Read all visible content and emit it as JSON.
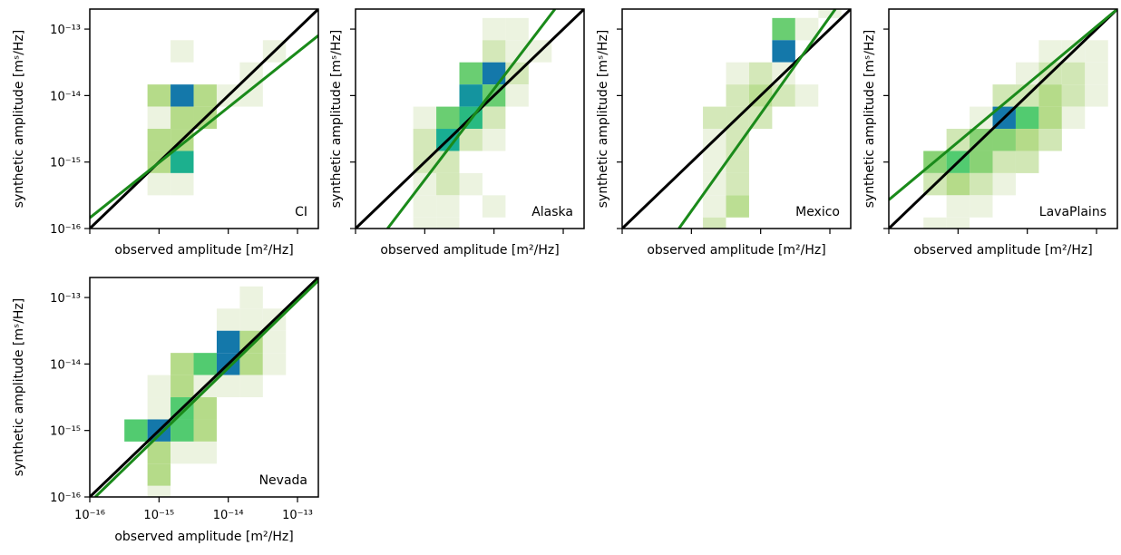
{
  "figure": {
    "xlabel": "observed amplitude [m²/Hz]",
    "ylabel": "synthetic amplitude [mˢ/Hz]"
  },
  "chart_data": [
    {
      "type": "heatmap",
      "panel_label": "CI",
      "xlabel": "observed amplitude [m²/Hz]",
      "ylabel": "synthetic amplitude [mˢ/Hz]",
      "xscale": "log",
      "yscale": "log",
      "xlim": [
        1e-16,
        2e-13
      ],
      "ylim": [
        1e-16,
        2e-13
      ],
      "xticks": [
        1e-16,
        1e-15,
        1e-14,
        1e-13
      ],
      "yticks": [
        1e-16,
        1e-15,
        1e-14,
        1e-13
      ],
      "ytick_labels": [
        "10⁻¹⁶",
        "10⁻¹⁵",
        "10⁻¹⁴",
        "10⁻¹³"
      ],
      "xtick_labels": [],
      "bin_log10_width": 0.3333,
      "bins": [
        {
          "x": -13.6667,
          "y": -13.6667,
          "count": 1
        },
        {
          "x": -14.6667,
          "y": -13.3333,
          "count": 1
        },
        {
          "x": -13.3333,
          "y": -13.3333,
          "count": 1
        },
        {
          "x": -15.0,
          "y": -14.0,
          "count": 2
        },
        {
          "x": -14.6667,
          "y": -14.0,
          "count": 5
        },
        {
          "x": -14.3333,
          "y": -14.0,
          "count": 2
        },
        {
          "x": -14.0,
          "y": -14.0,
          "count": 1
        },
        {
          "x": -13.6667,
          "y": -14.0,
          "count": 1
        },
        {
          "x": -15.0,
          "y": -14.3333,
          "count": 1
        },
        {
          "x": -14.6667,
          "y": -14.3333,
          "count": 2
        },
        {
          "x": -14.3333,
          "y": -14.3333,
          "count": 2
        },
        {
          "x": -15.0,
          "y": -14.6667,
          "count": 2
        },
        {
          "x": -14.6667,
          "y": -14.6667,
          "count": 2
        },
        {
          "x": -15.0,
          "y": -15.0,
          "count": 2
        },
        {
          "x": -14.6667,
          "y": -15.0,
          "count": 4
        },
        {
          "x": -15.0,
          "y": -15.3333,
          "count": 1
        },
        {
          "x": -14.6667,
          "y": -15.3333,
          "count": 1
        }
      ],
      "lines": [
        {
          "name": "",
          "color": "#000000",
          "points": [
            [
              1e-16,
              1e-16
            ],
            [
              2e-13,
              2e-13
            ]
          ]
        },
        {
          "name": "",
          "color": "#1a8a1a",
          "points": [
            [
              1e-16,
              1.45e-16
            ],
            [
              2e-13,
              8e-14
            ]
          ]
        }
      ]
    },
    {
      "type": "heatmap",
      "panel_label": "Alaska",
      "xlabel": "observed amplitude [m²/Hz]",
      "ylabel": "synthetic amplitude [mˢ/Hz]",
      "xscale": "log",
      "yscale": "log",
      "xlim": [
        1e-16,
        2e-13
      ],
      "ylim": [
        1e-16,
        2e-13
      ],
      "xticks": [
        1e-16,
        1e-15,
        1e-14,
        1e-13
      ],
      "yticks": [
        1e-16,
        1e-15,
        1e-14,
        1e-13
      ],
      "ytick_labels": [],
      "xtick_labels": [],
      "bin_log10_width": 0.3333,
      "bins": [
        {
          "x": -13.3333,
          "y": -13.3333,
          "count": 1
        },
        {
          "x": -14.0,
          "y": -13.0,
          "count": 1
        },
        {
          "x": -13.6667,
          "y": -13.0,
          "count": 1
        },
        {
          "x": -14.0,
          "y": -13.3333,
          "count": 2
        },
        {
          "x": -13.6667,
          "y": -13.3333,
          "count": 1
        },
        {
          "x": -14.3333,
          "y": -13.6667,
          "count": 5
        },
        {
          "x": -14.0,
          "y": -13.6667,
          "count": 10
        },
        {
          "x": -13.6667,
          "y": -13.6667,
          "count": 2
        },
        {
          "x": -14.3333,
          "y": -14.0,
          "count": 9
        },
        {
          "x": -14.0,
          "y": -14.0,
          "count": 5
        },
        {
          "x": -13.6667,
          "y": -14.0,
          "count": 1
        },
        {
          "x": -15.0,
          "y": -14.3333,
          "count": 1
        },
        {
          "x": -14.6667,
          "y": -14.3333,
          "count": 5
        },
        {
          "x": -14.3333,
          "y": -14.3333,
          "count": 7
        },
        {
          "x": -14.0,
          "y": -14.3333,
          "count": 2
        },
        {
          "x": -15.0,
          "y": -14.6667,
          "count": 2
        },
        {
          "x": -14.6667,
          "y": -14.6667,
          "count": 8
        },
        {
          "x": -14.3333,
          "y": -14.6667,
          "count": 2
        },
        {
          "x": -14.0,
          "y": -14.6667,
          "count": 1
        },
        {
          "x": -15.0,
          "y": -15.0,
          "count": 2
        },
        {
          "x": -14.6667,
          "y": -15.0,
          "count": 2
        },
        {
          "x": -15.0,
          "y": -15.3333,
          "count": 1
        },
        {
          "x": -14.6667,
          "y": -15.3333,
          "count": 2
        },
        {
          "x": -14.3333,
          "y": -15.3333,
          "count": 1
        },
        {
          "x": -15.0,
          "y": -15.6667,
          "count": 1
        },
        {
          "x": -14.6667,
          "y": -15.6667,
          "count": 1
        },
        {
          "x": -14.0,
          "y": -15.6667,
          "count": 1
        },
        {
          "x": -15.0,
          "y": -16.0,
          "count": 1
        },
        {
          "x": -14.6667,
          "y": -16.0,
          "count": 1
        }
      ],
      "lines": [
        {
          "name": "",
          "color": "#000000",
          "points": [
            [
              1e-16,
              1e-16
            ],
            [
              2e-13,
              2e-13
            ]
          ]
        },
        {
          "name": "",
          "color": "#1a8a1a",
          "points": [
            [
              2.9e-16,
              1e-16
            ],
            [
              7.6e-14,
              2e-13
            ]
          ]
        }
      ]
    },
    {
      "type": "heatmap",
      "panel_label": "Mexico",
      "xlabel": "observed amplitude [m²/Hz]",
      "ylabel": "synthetic amplitude [mˢ/Hz]",
      "xscale": "log",
      "yscale": "log",
      "xlim": [
        1e-16,
        2e-13
      ],
      "ylim": [
        1e-16,
        2e-13
      ],
      "xticks": [
        1e-16,
        1e-15,
        1e-14,
        1e-13
      ],
      "yticks": [
        1e-16,
        1e-15,
        1e-14,
        1e-13
      ],
      "ytick_labels": [],
      "xtick_labels": [],
      "bin_log10_width": 0.3333,
      "bins": [
        {
          "x": -13.3333,
          "y": -13.0,
          "count": 1
        },
        {
          "x": -13.0,
          "y": -12.6667,
          "count": 1
        },
        {
          "x": -13.6667,
          "y": -13.0,
          "count": 5
        },
        {
          "x": -13.3333,
          "y": -13.0,
          "count": 1
        },
        {
          "x": -13.6667,
          "y": -13.3333,
          "count": 10
        },
        {
          "x": -14.3333,
          "y": -13.6667,
          "count": 1
        },
        {
          "x": -14.0,
          "y": -13.6667,
          "count": 2
        },
        {
          "x": -13.6667,
          "y": -13.6667,
          "count": 1
        },
        {
          "x": -14.3333,
          "y": -14.0,
          "count": 2
        },
        {
          "x": -14.0,
          "y": -14.0,
          "count": 3
        },
        {
          "x": -13.6667,
          "y": -14.0,
          "count": 2
        },
        {
          "x": -13.3333,
          "y": -14.0,
          "count": 1
        },
        {
          "x": -14.6667,
          "y": -14.3333,
          "count": 2
        },
        {
          "x": -14.3333,
          "y": -14.3333,
          "count": 2
        },
        {
          "x": -14.0,
          "y": -14.3333,
          "count": 2
        },
        {
          "x": -14.6667,
          "y": -14.6667,
          "count": 1
        },
        {
          "x": -14.3333,
          "y": -14.6667,
          "count": 2
        },
        {
          "x": -14.6667,
          "y": -15.0,
          "count": 1
        },
        {
          "x": -14.3333,
          "y": -15.0,
          "count": 2
        },
        {
          "x": -14.6667,
          "y": -15.3333,
          "count": 1
        },
        {
          "x": -14.3333,
          "y": -15.3333,
          "count": 2
        },
        {
          "x": -14.6667,
          "y": -15.6667,
          "count": 1
        },
        {
          "x": -14.3333,
          "y": -15.6667,
          "count": 3
        },
        {
          "x": -14.6667,
          "y": -16.0,
          "count": 2
        }
      ],
      "lines": [
        {
          "name": "",
          "color": "#000000",
          "points": [
            [
              1e-16,
              1e-16
            ],
            [
              2e-13,
              2e-13
            ]
          ]
        },
        {
          "name": "",
          "color": "#1a8a1a",
          "points": [
            [
              6.6e-16,
              1e-16
            ],
            [
              1.2e-13,
              2e-13
            ]
          ]
        }
      ]
    },
    {
      "type": "heatmap",
      "panel_label": "LavaPlains",
      "xlabel": "observed amplitude [m²/Hz]",
      "ylabel": "synthetic amplitude [mˢ/Hz]",
      "xscale": "log",
      "yscale": "log",
      "xlim": [
        1e-16,
        2e-13
      ],
      "ylim": [
        1e-16,
        2e-13
      ],
      "xticks": [
        1e-16,
        1e-15,
        1e-14,
        1e-13
      ],
      "yticks": [
        1e-16,
        1e-15,
        1e-14,
        1e-13
      ],
      "ytick_labels": [],
      "xtick_labels": [],
      "bin_log10_width": 0.3333,
      "bins": [
        {
          "x": -13.3333,
          "y": -13.3333,
          "count": 1
        },
        {
          "x": -13.6667,
          "y": -13.3333,
          "count": 1
        },
        {
          "x": -13.0,
          "y": -13.3333,
          "count": 1
        },
        {
          "x": -14.0,
          "y": -13.6667,
          "count": 1
        },
        {
          "x": -13.6667,
          "y": -13.6667,
          "count": 2
        },
        {
          "x": -13.3333,
          "y": -13.6667,
          "count": 2
        },
        {
          "x": -13.0,
          "y": -13.6667,
          "count": 1
        },
        {
          "x": -14.3333,
          "y": -14.0,
          "count": 2
        },
        {
          "x": -14.0,
          "y": -14.0,
          "count": 2
        },
        {
          "x": -13.6667,
          "y": -14.0,
          "count": 3
        },
        {
          "x": -13.3333,
          "y": -14.0,
          "count": 2
        },
        {
          "x": -13.0,
          "y": -14.0,
          "count": 1
        },
        {
          "x": -14.6667,
          "y": -14.3333,
          "count": 1
        },
        {
          "x": -14.3333,
          "y": -14.3333,
          "count": 9
        },
        {
          "x": -14.0,
          "y": -14.3333,
          "count": 5
        },
        {
          "x": -13.6667,
          "y": -14.3333,
          "count": 3
        },
        {
          "x": -13.3333,
          "y": -14.3333,
          "count": 1
        },
        {
          "x": -15.0,
          "y": -14.6667,
          "count": 2
        },
        {
          "x": -14.6667,
          "y": -14.6667,
          "count": 4
        },
        {
          "x": -14.3333,
          "y": -14.6667,
          "count": 4
        },
        {
          "x": -14.0,
          "y": -14.6667,
          "count": 3
        },
        {
          "x": -13.6667,
          "y": -14.6667,
          "count": 2
        },
        {
          "x": -15.3333,
          "y": -15.0,
          "count": 4
        },
        {
          "x": -15.0,
          "y": -15.0,
          "count": 5
        },
        {
          "x": -14.6667,
          "y": -15.0,
          "count": 4
        },
        {
          "x": -14.3333,
          "y": -15.0,
          "count": 2
        },
        {
          "x": -14.0,
          "y": -15.0,
          "count": 2
        },
        {
          "x": -15.3333,
          "y": -15.3333,
          "count": 2
        },
        {
          "x": -15.0,
          "y": -15.3333,
          "count": 3
        },
        {
          "x": -14.6667,
          "y": -15.3333,
          "count": 2
        },
        {
          "x": -14.3333,
          "y": -15.3333,
          "count": 1
        },
        {
          "x": -15.0,
          "y": -15.6667,
          "count": 1
        },
        {
          "x": -14.6667,
          "y": -15.6667,
          "count": 1
        },
        {
          "x": -15.3333,
          "y": -16.0,
          "count": 1
        },
        {
          "x": -15.0,
          "y": -16.0,
          "count": 1
        }
      ],
      "lines": [
        {
          "name": "",
          "color": "#000000",
          "points": [
            [
              1e-16,
              1e-16
            ],
            [
              2e-13,
              2e-13
            ]
          ]
        },
        {
          "name": "",
          "color": "#1a8a1a",
          "points": [
            [
              1e-16,
              2.7e-16
            ],
            [
              2e-13,
              2e-13
            ]
          ]
        }
      ]
    },
    {
      "type": "heatmap",
      "panel_label": "Nevada",
      "xlabel": "observed amplitude [m²/Hz]",
      "ylabel": "synthetic amplitude [mˢ/Hz]",
      "xscale": "log",
      "yscale": "log",
      "xlim": [
        1e-16,
        2e-13
      ],
      "ylim": [
        1e-16,
        2e-13
      ],
      "xticks": [
        1e-16,
        1e-15,
        1e-14,
        1e-13
      ],
      "yticks": [
        1e-16,
        1e-15,
        1e-14,
        1e-13
      ],
      "ytick_labels": [
        "10⁻¹⁶",
        "10⁻¹⁵",
        "10⁻¹⁴",
        "10⁻¹³"
      ],
      "xtick_labels": [
        "10⁻¹⁶",
        "10⁻¹⁵",
        "10⁻¹⁴",
        "10⁻¹³"
      ],
      "bin_log10_width": 0.3333,
      "bins": [
        {
          "x": -13.6667,
          "y": -13.0,
          "count": 1
        },
        {
          "x": -14.0,
          "y": -13.3333,
          "count": 1
        },
        {
          "x": -13.6667,
          "y": -13.3333,
          "count": 1
        },
        {
          "x": -13.3333,
          "y": -13.3333,
          "count": 1
        },
        {
          "x": -14.0,
          "y": -13.6667,
          "count": 5
        },
        {
          "x": -13.6667,
          "y": -13.6667,
          "count": 2
        },
        {
          "x": -13.3333,
          "y": -13.6667,
          "count": 1
        },
        {
          "x": -14.6667,
          "y": -14.0,
          "count": 2
        },
        {
          "x": -14.3333,
          "y": -14.0,
          "count": 3
        },
        {
          "x": -14.0,
          "y": -14.0,
          "count": 5
        },
        {
          "x": -13.6667,
          "y": -14.0,
          "count": 2
        },
        {
          "x": -13.3333,
          "y": -14.0,
          "count": 1
        },
        {
          "x": -15.0,
          "y": -14.3333,
          "count": 1
        },
        {
          "x": -14.6667,
          "y": -14.3333,
          "count": 2
        },
        {
          "x": -14.3333,
          "y": -14.3333,
          "count": 1
        },
        {
          "x": -14.0,
          "y": -14.3333,
          "count": 1
        },
        {
          "x": -13.6667,
          "y": -14.3333,
          "count": 1
        },
        {
          "x": -15.0,
          "y": -14.6667,
          "count": 1
        },
        {
          "x": -14.6667,
          "y": -14.6667,
          "count": 3
        },
        {
          "x": -14.3333,
          "y": -14.6667,
          "count": 2
        },
        {
          "x": -15.3333,
          "y": -15.0,
          "count": 3
        },
        {
          "x": -15.0,
          "y": -15.0,
          "count": 5
        },
        {
          "x": -14.6667,
          "y": -15.0,
          "count": 3
        },
        {
          "x": -14.3333,
          "y": -15.0,
          "count": 2
        },
        {
          "x": -15.0,
          "y": -15.3333,
          "count": 2
        },
        {
          "x": -14.6667,
          "y": -15.3333,
          "count": 1
        },
        {
          "x": -14.3333,
          "y": -15.3333,
          "count": 1
        },
        {
          "x": -15.0,
          "y": -15.6667,
          "count": 2
        },
        {
          "x": -15.0,
          "y": -16.0,
          "count": 1
        }
      ],
      "lines": [
        {
          "name": "",
          "color": "#000000",
          "points": [
            [
              1e-16,
              1e-16
            ],
            [
              2e-13,
              2e-13
            ]
          ]
        },
        {
          "name": "",
          "color": "#1a8a1a",
          "points": [
            [
              1.2e-16,
              1e-16
            ],
            [
              2e-13,
              1.8e-13
            ]
          ]
        }
      ]
    }
  ]
}
